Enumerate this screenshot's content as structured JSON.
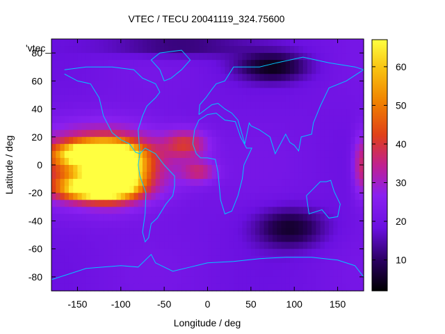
{
  "chart_data": {
    "type": "heatmap",
    "title": "VTEC / TECU 20041119_324.75600",
    "xlabel": "Longitude / deg",
    "ylabel": "Latitude / deg",
    "legend_key": "'vtec_",
    "xlim": [
      -180,
      180
    ],
    "ylim": [
      -90,
      90
    ],
    "x_ticks": [
      -150,
      -100,
      -50,
      0,
      50,
      100,
      150
    ],
    "y_ticks": [
      -80,
      -60,
      -40,
      -20,
      0,
      20,
      40,
      60,
      80
    ],
    "colorbar": {
      "range": [
        2,
        67
      ],
      "ticks": [
        10,
        20,
        30,
        40,
        50,
        60
      ],
      "palette": [
        "#000000",
        "#2a0060",
        "#6a10e0",
        "#8a20f0",
        "#c02090",
        "#e04018",
        "#f08000",
        "#f8c010",
        "#ffff40"
      ]
    },
    "background_level": 20,
    "features": [
      {
        "name": "main equatorial anomaly band",
        "lon": -120,
        "lat": 0,
        "lon_extent": 70,
        "lat_extent": 24,
        "peak": 56
      },
      {
        "name": "northern crest",
        "lon": -130,
        "lat": 8,
        "lon_extent": 40,
        "lat_extent": 8,
        "peak": 63
      },
      {
        "name": "southern crest",
        "lon": -130,
        "lat": -17,
        "lon_extent": 40,
        "lat_extent": 8,
        "peak": 64
      },
      {
        "name": "central cores",
        "lon": -105,
        "lat": -5,
        "lon_extent": 30,
        "lat_extent": 16,
        "peak": 60
      },
      {
        "name": "atlantic extension north",
        "lon": -25,
        "lat": 15,
        "lon_extent": 25,
        "lat_extent": 10,
        "peak": 38
      },
      {
        "name": "atlantic extension south",
        "lon": -10,
        "lat": -5,
        "lon_extent": 20,
        "lat_extent": 8,
        "peak": 34
      },
      {
        "name": "eastern edge band",
        "lon": 178,
        "lat": 0,
        "lon_extent": 10,
        "lat_extent": 22,
        "peak": 38
      },
      {
        "name": "asian depletion",
        "lon": 75,
        "lat": 70,
        "lon_extent": 40,
        "lat_extent": 10,
        "peak": 5
      },
      {
        "name": "southern indian depletion",
        "lon": 95,
        "lat": -45,
        "lon_extent": 40,
        "lat_extent": 14,
        "peak": 6
      },
      {
        "name": "arctic depletion",
        "lon": -40,
        "lat": 85,
        "lon_extent": 80,
        "lat_extent": 8,
        "peak": 10
      }
    ],
    "coastlines": [
      {
        "name": "north america",
        "points": [
          [
            -165,
            65
          ],
          [
            -150,
            60
          ],
          [
            -135,
            58
          ],
          [
            -125,
            48
          ],
          [
            -120,
            35
          ],
          [
            -110,
            23
          ],
          [
            -100,
            18
          ],
          [
            -90,
            15
          ],
          [
            -83,
            9
          ],
          [
            -78,
            8
          ],
          [
            -80,
            25
          ],
          [
            -75,
            35
          ],
          [
            -70,
            42
          ],
          [
            -65,
            45
          ],
          [
            -60,
            48
          ],
          [
            -55,
            52
          ],
          [
            -60,
            58
          ],
          [
            -75,
            62
          ],
          [
            -85,
            68
          ],
          [
            -110,
            70
          ],
          [
            -140,
            70
          ],
          [
            -165,
            68
          ]
        ]
      },
      {
        "name": "greenland",
        "points": [
          [
            -50,
            60
          ],
          [
            -42,
            62
          ],
          [
            -30,
            68
          ],
          [
            -20,
            75
          ],
          [
            -30,
            82
          ],
          [
            -55,
            80
          ],
          [
            -65,
            75
          ],
          [
            -55,
            68
          ],
          [
            -50,
            60
          ]
        ]
      },
      {
        "name": "south america",
        "points": [
          [
            -78,
            8
          ],
          [
            -72,
            12
          ],
          [
            -60,
            8
          ],
          [
            -50,
            0
          ],
          [
            -38,
            -8
          ],
          [
            -38,
            -15
          ],
          [
            -40,
            -22
          ],
          [
            -48,
            -28
          ],
          [
            -58,
            -38
          ],
          [
            -65,
            -42
          ],
          [
            -68,
            -52
          ],
          [
            -72,
            -55
          ],
          [
            -75,
            -48
          ],
          [
            -72,
            -35
          ],
          [
            -71,
            -20
          ],
          [
            -78,
            -8
          ],
          [
            -80,
            0
          ],
          [
            -78,
            8
          ]
        ]
      },
      {
        "name": "africa",
        "points": [
          [
            -17,
            15
          ],
          [
            -15,
            25
          ],
          [
            -10,
            32
          ],
          [
            0,
            36
          ],
          [
            10,
            37
          ],
          [
            20,
            32
          ],
          [
            32,
            31
          ],
          [
            38,
            20
          ],
          [
            45,
            12
          ],
          [
            51,
            12
          ],
          [
            42,
            0
          ],
          [
            40,
            -10
          ],
          [
            35,
            -22
          ],
          [
            28,
            -33
          ],
          [
            20,
            -35
          ],
          [
            15,
            -25
          ],
          [
            12,
            -5
          ],
          [
            9,
            4
          ],
          [
            0,
            5
          ],
          [
            -8,
            5
          ],
          [
            -13,
            8
          ],
          [
            -17,
            15
          ]
        ]
      },
      {
        "name": "eurasia",
        "points": [
          [
            -10,
            36
          ],
          [
            -9,
            43
          ],
          [
            -2,
            48
          ],
          [
            5,
            54
          ],
          [
            10,
            58
          ],
          [
            20,
            60
          ],
          [
            30,
            70
          ],
          [
            60,
            70
          ],
          [
            80,
            73
          ],
          [
            110,
            77
          ],
          [
            140,
            73
          ],
          [
            170,
            70
          ],
          [
            180,
            68
          ],
          [
            160,
            60
          ],
          [
            140,
            55
          ],
          [
            130,
            42
          ],
          [
            122,
            30
          ],
          [
            120,
            22
          ],
          [
            108,
            20
          ],
          [
            105,
            10
          ],
          [
            100,
            14
          ],
          [
            95,
            16
          ],
          [
            90,
            22
          ],
          [
            78,
            8
          ],
          [
            72,
            20
          ],
          [
            60,
            25
          ],
          [
            50,
            28
          ],
          [
            48,
            30
          ],
          [
            43,
            15
          ],
          [
            35,
            32
          ],
          [
            28,
            37
          ],
          [
            20,
            40
          ],
          [
            12,
            44
          ],
          [
            5,
            43
          ],
          [
            -10,
            36
          ]
        ]
      },
      {
        "name": "australia",
        "points": [
          [
            114,
            -22
          ],
          [
            122,
            -17
          ],
          [
            130,
            -12
          ],
          [
            137,
            -12
          ],
          [
            142,
            -11
          ],
          [
            146,
            -19
          ],
          [
            153,
            -28
          ],
          [
            150,
            -37
          ],
          [
            140,
            -38
          ],
          [
            132,
            -32
          ],
          [
            117,
            -35
          ],
          [
            114,
            -22
          ]
        ]
      },
      {
        "name": "antarctica",
        "points": [
          [
            -180,
            -82
          ],
          [
            -160,
            -78
          ],
          [
            -140,
            -74
          ],
          [
            -120,
            -73
          ],
          [
            -100,
            -72
          ],
          [
            -80,
            -73
          ],
          [
            -65,
            -64
          ],
          [
            -60,
            -70
          ],
          [
            -40,
            -76
          ],
          [
            -20,
            -73
          ],
          [
            0,
            -70
          ],
          [
            30,
            -69
          ],
          [
            60,
            -67
          ],
          [
            90,
            -66
          ],
          [
            120,
            -66
          ],
          [
            150,
            -68
          ],
          [
            170,
            -72
          ],
          [
            180,
            -80
          ]
        ]
      }
    ]
  }
}
